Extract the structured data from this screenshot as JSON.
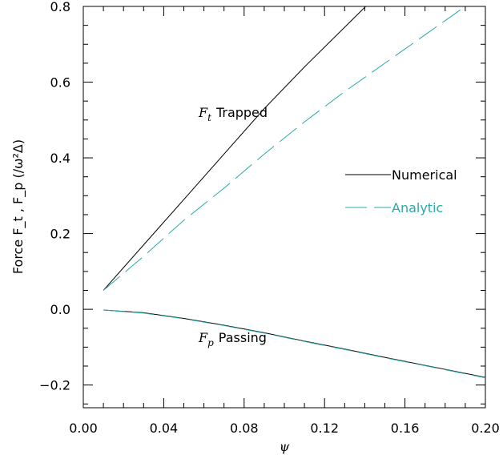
{
  "chart_data": {
    "type": "line",
    "xlabel": "ψ",
    "ylabel": "Force F_t , F_p (/ω²Δ)",
    "xlim": [
      0.0,
      0.2
    ],
    "ylim": [
      -0.26,
      0.8
    ],
    "xticks": [
      {
        "value": 0.0,
        "label": "0.00"
      },
      {
        "value": 0.04,
        "label": "0.04"
      },
      {
        "value": 0.08,
        "label": "0.08"
      },
      {
        "value": 0.12,
        "label": "0.12"
      },
      {
        "value": 0.16,
        "label": "0.16"
      },
      {
        "value": 0.2,
        "label": "0.20"
      }
    ],
    "yticks": [
      {
        "value": -0.2,
        "label": "−0.2"
      },
      {
        "value": 0.0,
        "label": "0.0"
      },
      {
        "value": 0.2,
        "label": "0.2"
      },
      {
        "value": 0.4,
        "label": "0.4"
      },
      {
        "value": 0.6,
        "label": "0.6"
      },
      {
        "value": 0.8,
        "label": "0.8"
      }
    ],
    "grid": false,
    "legend": [
      {
        "label": "Numerical",
        "style": "solid",
        "color": "#000000"
      },
      {
        "label": "Analytic",
        "style": "dashed",
        "color": "#2aa9a9"
      }
    ],
    "annotations": [
      {
        "symbol": "F",
        "sub": "t",
        "text": "Trapped"
      },
      {
        "symbol": "F",
        "sub": "p",
        "text": "Passing"
      }
    ],
    "series": [
      {
        "curve": "trapped-numerical",
        "style": "solid",
        "color": "#000000",
        "x": [
          0.01,
          0.03,
          0.05,
          0.07,
          0.09,
          0.11,
          0.13,
          0.15,
          0.156
        ],
        "y": [
          0.05,
          0.17,
          0.29,
          0.41,
          0.53,
          0.64,
          0.745,
          0.85,
          0.88
        ]
      },
      {
        "curve": "trapped-analytic",
        "style": "dashed",
        "color": "#2aa9a9",
        "x": [
          0.01,
          0.03,
          0.05,
          0.07,
          0.09,
          0.11,
          0.13,
          0.15,
          0.17,
          0.19
        ],
        "y": [
          0.05,
          0.14,
          0.235,
          0.32,
          0.41,
          0.495,
          0.575,
          0.65,
          0.725,
          0.8
        ]
      },
      {
        "curve": "passing-numerical",
        "style": "solid",
        "color": "#000000",
        "x": [
          0.01,
          0.03,
          0.05,
          0.07,
          0.09,
          0.11,
          0.13,
          0.15,
          0.17,
          0.2
        ],
        "y": [
          -0.002,
          -0.009,
          -0.024,
          -0.042,
          -0.062,
          -0.084,
          -0.105,
          -0.127,
          -0.148,
          -0.18
        ]
      },
      {
        "curve": "passing-analytic",
        "style": "dashed",
        "color": "#2aa9a9",
        "x": [
          0.01,
          0.03,
          0.05,
          0.07,
          0.09,
          0.11,
          0.13,
          0.15,
          0.17,
          0.2
        ],
        "y": [
          -0.002,
          -0.01,
          -0.025,
          -0.043,
          -0.063,
          -0.085,
          -0.106,
          -0.128,
          -0.149,
          -0.181
        ]
      }
    ]
  }
}
